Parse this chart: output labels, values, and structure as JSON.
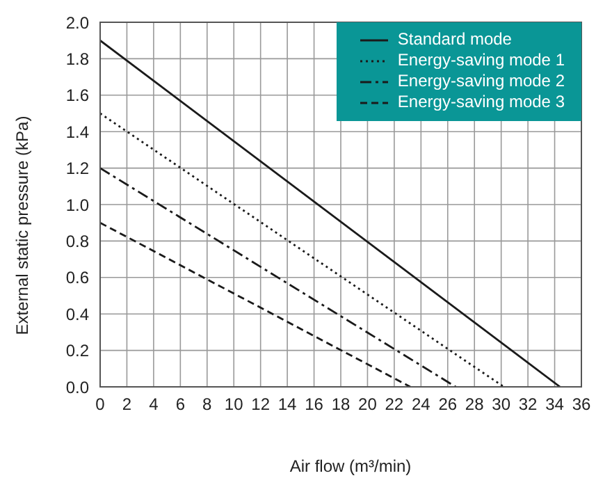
{
  "chart_data": {
    "type": "line",
    "xlabel": "Air flow (m³/min)",
    "ylabel": "External static pressure (kPa)",
    "xlim": [
      0,
      36
    ],
    "xticks": [
      0,
      2,
      4,
      6,
      8,
      10,
      12,
      14,
      16,
      18,
      20,
      22,
      24,
      26,
      28,
      30,
      32,
      34,
      36
    ],
    "ylim": [
      0,
      2
    ],
    "yticks": [
      {
        "value": 0,
        "label": "0.0"
      },
      {
        "value": 0.2,
        "label": "0.2"
      },
      {
        "value": 0.4,
        "label": "0.4"
      },
      {
        "value": 0.6,
        "label": "0.6"
      },
      {
        "value": 0.8,
        "label": "0.8"
      },
      {
        "value": 1,
        "label": "1.0"
      },
      {
        "value": 1.2,
        "label": "1.2"
      },
      {
        "value": 1.4,
        "label": "1.4"
      },
      {
        "value": 1.6,
        "label": "1.6"
      },
      {
        "value": 1.8,
        "label": "1.8"
      },
      {
        "value": 2,
        "label": "2.0"
      }
    ],
    "grid": true,
    "legend": "top right",
    "marker": "none",
    "series": [
      {
        "name": "Standard mode",
        "color": "#1a1a1a",
        "line_style": "solid",
        "x": [
          0,
          34.4
        ],
        "values": [
          1.9,
          0
        ]
      },
      {
        "name": "Energy-saving mode 1",
        "color": "#1a1a1a",
        "line_style": "dotted",
        "x": [
          0,
          30.2
        ],
        "values": [
          1.5,
          0
        ]
      },
      {
        "name": "Energy-saving mode 2",
        "color": "#1a1a1a",
        "line_style": "dashdot",
        "x": [
          0,
          26.6
        ],
        "values": [
          1.2,
          0
        ]
      },
      {
        "name": "Energy-saving mode 3",
        "color": "#1a1a1a",
        "line_style": "dashed",
        "x": [
          0,
          23.2
        ],
        "values": [
          0.9,
          0
        ]
      }
    ]
  }
}
